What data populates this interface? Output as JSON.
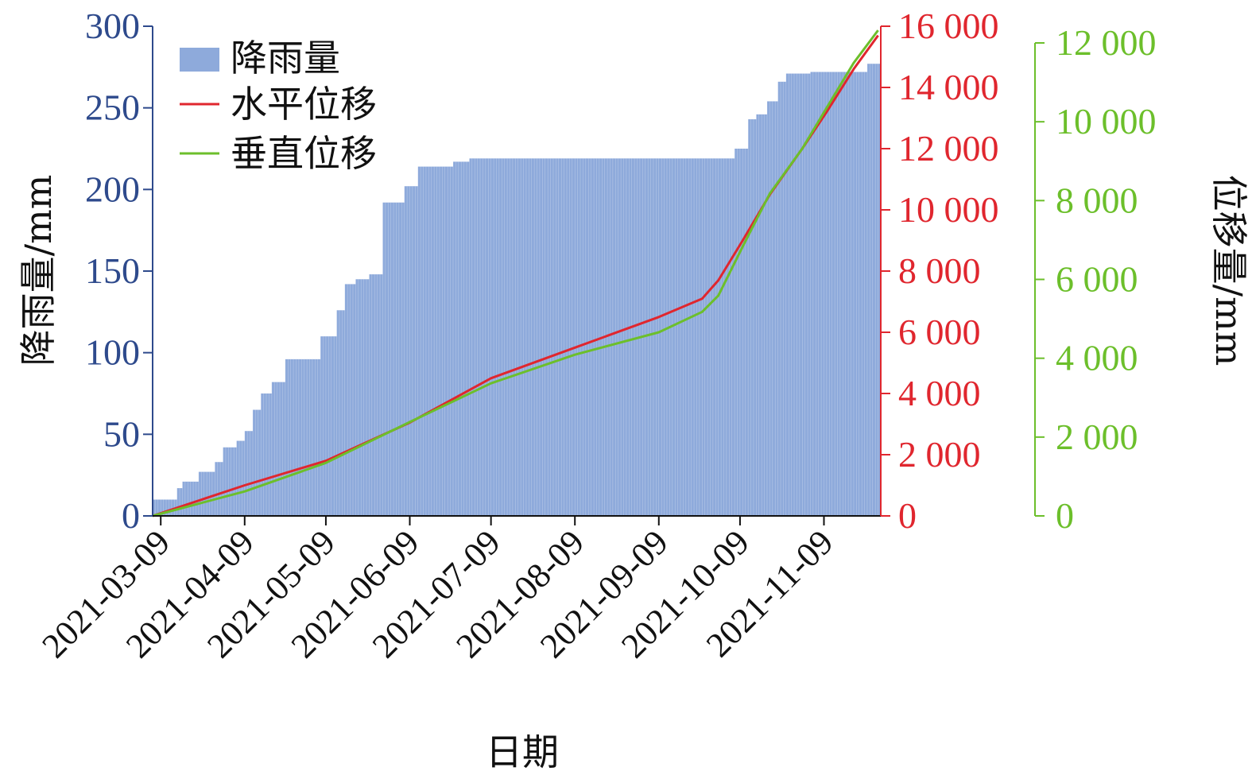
{
  "chart_data": {
    "type": "bar+line",
    "xlabel": "日期",
    "ylabel_left": "降雨量/mm",
    "ylabel_right": "位移量/mm",
    "x_ticks": [
      "2021-03-09",
      "2021-04-09",
      "2021-05-09",
      "2021-06-09",
      "2021-07-09",
      "2021-08-09",
      "2021-09-09",
      "2021-10-09",
      "2021-11-09"
    ],
    "x_range": [
      "2021-03-06",
      "2021-11-30"
    ],
    "y_left": {
      "range": [
        0,
        300
      ],
      "ticks": [
        "0",
        "50",
        "100",
        "150",
        "200",
        "250",
        "300"
      ],
      "color": "#2e4a8c"
    },
    "y_right_red": {
      "range": [
        0,
        16000
      ],
      "ticks": [
        "0",
        "2 000",
        "4 000",
        "6 000",
        "8 000",
        "10 000",
        "12 000",
        "14 000",
        "16 000"
      ],
      "color": "#e0262e"
    },
    "y_right_green": {
      "range": [
        0,
        12000
      ],
      "ticks": [
        "0",
        "2 000",
        "4 000",
        "6 000",
        "8 000",
        "10 000",
        "12 000"
      ],
      "color": "#6cbf2b"
    },
    "rainfall": {
      "name": "降雨量",
      "color": "#8eaadb",
      "steps": [
        [
          "2021-03-06",
          10
        ],
        [
          "2021-03-15",
          17
        ],
        [
          "2021-03-17",
          21
        ],
        [
          "2021-03-23",
          27
        ],
        [
          "2021-03-29",
          33
        ],
        [
          "2021-04-01",
          42
        ],
        [
          "2021-04-06",
          46
        ],
        [
          "2021-04-09",
          52
        ],
        [
          "2021-04-12",
          65
        ],
        [
          "2021-04-15",
          75
        ],
        [
          "2021-04-19",
          82
        ],
        [
          "2021-04-24",
          96
        ],
        [
          "2021-05-07",
          110
        ],
        [
          "2021-05-13",
          126
        ],
        [
          "2021-05-16",
          142
        ],
        [
          "2021-05-20",
          145
        ],
        [
          "2021-05-25",
          148
        ],
        [
          "2021-05-30",
          192
        ],
        [
          "2021-06-07",
          202
        ],
        [
          "2021-06-12",
          214
        ],
        [
          "2021-06-25",
          217
        ],
        [
          "2021-07-01",
          219
        ],
        [
          "2021-10-07",
          225
        ],
        [
          "2021-10-12",
          243
        ],
        [
          "2021-10-15",
          246
        ],
        [
          "2021-10-19",
          254
        ],
        [
          "2021-10-23",
          266
        ],
        [
          "2021-10-26",
          271
        ],
        [
          "2021-11-04",
          272
        ],
        [
          "2021-11-25",
          277
        ]
      ]
    },
    "series": [
      {
        "name": "水平位移",
        "color": "#e0262e",
        "axis": "right_red",
        "points": [
          [
            "2021-03-06",
            0
          ],
          [
            "2021-04-09",
            1000
          ],
          [
            "2021-05-09",
            1800
          ],
          [
            "2021-06-09",
            3050
          ],
          [
            "2021-07-09",
            4500
          ],
          [
            "2021-08-09",
            5500
          ],
          [
            "2021-09-09",
            6500
          ],
          [
            "2021-09-25",
            7100
          ],
          [
            "2021-10-01",
            7700
          ],
          [
            "2021-10-10",
            9000
          ],
          [
            "2021-10-20",
            10500
          ],
          [
            "2021-11-01",
            12000
          ],
          [
            "2021-11-10",
            13200
          ],
          [
            "2021-11-20",
            14600
          ],
          [
            "2021-11-29",
            15700
          ]
        ]
      },
      {
        "name": "垂直位移",
        "color": "#6cbf2b",
        "axis": "right_green",
        "points": [
          [
            "2021-03-06",
            0
          ],
          [
            "2021-04-09",
            600
          ],
          [
            "2021-05-09",
            1300
          ],
          [
            "2021-06-09",
            2300
          ],
          [
            "2021-07-09",
            3250
          ],
          [
            "2021-08-09",
            3950
          ],
          [
            "2021-09-09",
            4500
          ],
          [
            "2021-09-25",
            5000
          ],
          [
            "2021-10-01",
            5400
          ],
          [
            "2021-10-10",
            6600
          ],
          [
            "2021-10-20",
            7900
          ],
          [
            "2021-11-01",
            9000
          ],
          [
            "2021-11-10",
            10000
          ],
          [
            "2021-11-20",
            11100
          ],
          [
            "2021-11-29",
            11900
          ]
        ]
      }
    ],
    "legend": {
      "position": "top-left",
      "entries": [
        "降雨量",
        "水平位移",
        "垂直位移"
      ]
    }
  }
}
